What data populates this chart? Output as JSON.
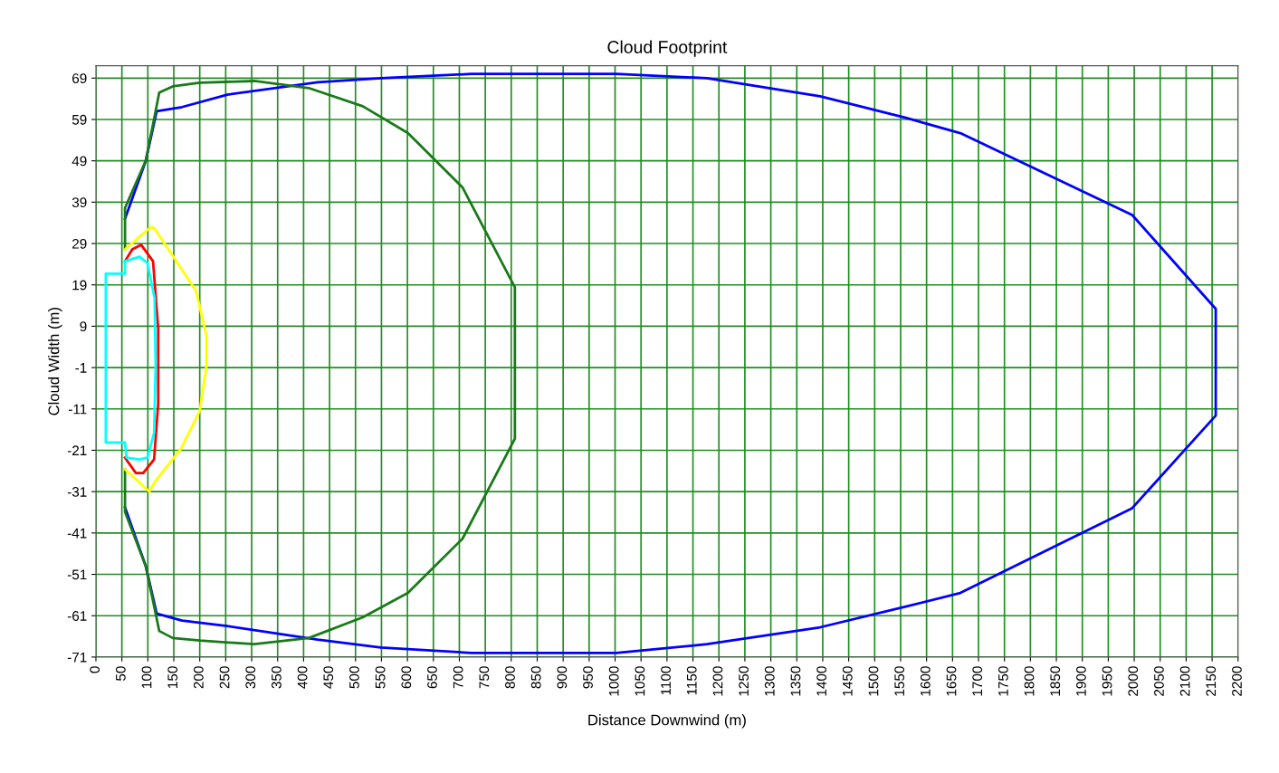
{
  "chart_data": {
    "type": "line",
    "title": "Cloud Footprint",
    "xlabel": "Distance Downwind (m)",
    "ylabel": "Cloud Width (m)",
    "xlim": [
      0,
      2200
    ],
    "xticks": [
      0,
      50,
      100,
      150,
      200,
      250,
      300,
      350,
      400,
      450,
      500,
      550,
      600,
      650,
      700,
      750,
      800,
      850,
      900,
      950,
      1000,
      1050,
      1100,
      1150,
      1200,
      1250,
      1300,
      1350,
      1400,
      1450,
      1500,
      1550,
      1600,
      1650,
      1700,
      1750,
      1800,
      1850,
      1900,
      1950,
      2000,
      2050,
      2100,
      2150,
      2200
    ],
    "ylim": [
      -71,
      72
    ],
    "yticks": [
      69,
      59,
      49,
      39,
      29,
      19,
      9,
      -1,
      -11,
      -21,
      -31,
      -41,
      -51,
      -61,
      -71
    ],
    "grid": true,
    "marker": "none",
    "line_style": "solid",
    "series": [
      {
        "color": "#0000ff",
        "x": [
          56,
          96,
          117,
          166,
          253,
          427,
          549,
          723,
          1002,
          1177,
          1395,
          1560,
          1665,
          1996,
          2157,
          2157,
          1996,
          1665,
          1560,
          1395,
          1177,
          1002,
          723,
          549,
          427,
          253,
          166,
          117,
          96,
          56
        ],
        "values": [
          35,
          49,
          61,
          62,
          65,
          68,
          69,
          70,
          70,
          69,
          64.6,
          59.4,
          55.7,
          35.9,
          13.2,
          -12.6,
          -35,
          -55.5,
          -58.8,
          -63.8,
          -67.9,
          -70,
          -70,
          -68.7,
          -66.8,
          -63.5,
          -62.2,
          -60.5,
          -49,
          -34.8
        ]
      },
      {
        "color": "#1a7a1a",
        "x": [
          56,
          56,
          96,
          122,
          148,
          200,
          305,
          410,
          514,
          601,
          706,
          807,
          807,
          706,
          601,
          514,
          410,
          305,
          200,
          148,
          122,
          96,
          56,
          56
        ],
        "values": [
          27.6,
          37.6,
          49,
          65.5,
          67,
          67.9,
          68.3,
          66.6,
          62.2,
          55.7,
          42.6,
          18.4,
          -18.2,
          -42.4,
          -55.5,
          -61.4,
          -66.4,
          -67.9,
          -67,
          -66.4,
          -64.7,
          -49,
          -35.9,
          -25.6
        ]
      },
      {
        "color": "#ffff00",
        "x": [
          56,
          106,
          113,
          193,
          213,
          213,
          200,
          164,
          113,
          103,
          56
        ],
        "values": [
          27.6,
          33,
          32.6,
          17.5,
          6.6,
          -0.6,
          -11.5,
          -20.6,
          -28.7,
          -31,
          -25.6
        ]
      },
      {
        "color": "#ff0000",
        "x": [
          56,
          70,
          87,
          110,
          120,
          120,
          112,
          91,
          77,
          56
        ],
        "values": [
          24.7,
          27.6,
          28.7,
          24.7,
          8.4,
          -9.7,
          -23.2,
          -26.5,
          -26.5,
          -22.8
        ]
      },
      {
        "color": "#00ffff",
        "x": [
          56,
          56,
          84,
          99,
          113,
          115,
          112,
          99,
          84,
          59,
          56,
          19,
          19,
          56,
          56
        ],
        "values": [
          21.7,
          24.7,
          25.8,
          24.3,
          15.8,
          -0.6,
          -16.9,
          -22.8,
          -23.2,
          -22.8,
          -19.1,
          -19.1,
          21.7,
          21.7,
          24.7
        ]
      }
    ]
  }
}
